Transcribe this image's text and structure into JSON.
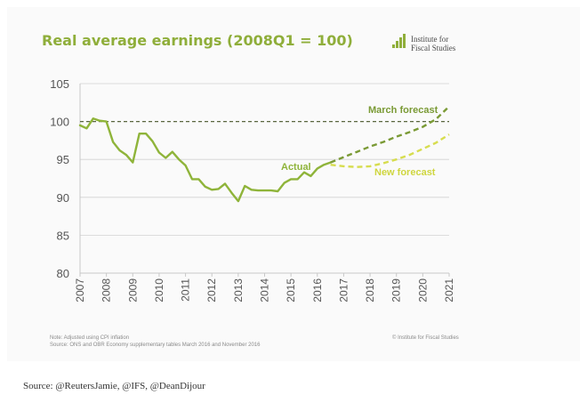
{
  "title": "Real average earnings (2008Q1 = 100)",
  "logo": {
    "line1": "Institute for",
    "line2": "Fiscal Studies",
    "icon": "bar-chart-logo-icon"
  },
  "note": {
    "line1": "Note: Adjusted using CPI inflation",
    "line2": "Source: ONS and OBR Economy supplementary tables March 2016 and November 2016",
    "copyright": "© Institute for Fiscal Studies"
  },
  "caption": "Source: @ReutersJamie, @IFS, @DeanDijour",
  "colors": {
    "actual": "#8fb43a",
    "march": "#7a9a35",
    "new_forecast": "#d7dd4f",
    "baseline": "#5a6640",
    "title": "#8fae3a",
    "axis_text": "#555555"
  },
  "chart_data": {
    "type": "line",
    "title": "Real average earnings (2008Q1 = 100)",
    "xlim": [
      2007,
      2021
    ],
    "ylim": [
      80,
      105
    ],
    "yticks": [
      80,
      85,
      90,
      95,
      100,
      105
    ],
    "xticks": [
      "2007",
      "2008",
      "2009",
      "2010",
      "2011",
      "2012",
      "2013",
      "2014",
      "2015",
      "2016",
      "2017",
      "2018",
      "2019",
      "2020",
      "2021"
    ],
    "reference_line": 100,
    "annotations": [
      {
        "text": "March forecast",
        "series": "march"
      },
      {
        "text": "Actual",
        "series": "actual"
      },
      {
        "text": "New forecast",
        "series": "new"
      }
    ],
    "series": [
      {
        "key": "actual",
        "style": "solid",
        "x": [
          2007.0,
          2007.25,
          2007.5,
          2007.75,
          2008.0,
          2008.25,
          2008.5,
          2008.75,
          2009.0,
          2009.25,
          2009.5,
          2009.75,
          2010.0,
          2010.25,
          2010.5,
          2010.75,
          2011.0,
          2011.25,
          2011.5,
          2011.75,
          2012.0,
          2012.25,
          2012.5,
          2012.75,
          2013.0,
          2013.25,
          2013.5,
          2013.75,
          2014.0,
          2014.25,
          2014.5,
          2014.75,
          2015.0,
          2015.25,
          2015.5,
          2015.75,
          2016.0,
          2016.25,
          2016.5
        ],
        "y": [
          99.5,
          99.1,
          100.4,
          100.1,
          100.0,
          97.3,
          96.2,
          95.6,
          94.6,
          98.4,
          98.4,
          97.4,
          95.9,
          95.2,
          96.0,
          95.0,
          94.2,
          92.4,
          92.4,
          91.4,
          91.0,
          91.1,
          91.8,
          90.6,
          89.5,
          91.5,
          91.0,
          90.9,
          90.9,
          90.9,
          90.8,
          91.9,
          92.4,
          92.4,
          93.3,
          92.8,
          93.8,
          94.3,
          94.6
        ]
      },
      {
        "key": "march",
        "style": "dashed",
        "x": [
          2016.5,
          2017.0,
          2017.5,
          2018.0,
          2018.5,
          2019.0,
          2019.5,
          2020.0,
          2020.5,
          2021.0
        ],
        "y": [
          94.6,
          95.3,
          96.0,
          96.7,
          97.3,
          98.0,
          98.6,
          99.3,
          100.3,
          102.0
        ]
      },
      {
        "key": "new",
        "style": "dashed",
        "x": [
          2016.5,
          2017.0,
          2017.5,
          2018.0,
          2018.5,
          2019.0,
          2019.5,
          2020.0,
          2020.5,
          2021.0
        ],
        "y": [
          94.3,
          94.1,
          94.0,
          94.1,
          94.5,
          95.0,
          95.6,
          96.4,
          97.2,
          98.3
        ]
      }
    ]
  }
}
